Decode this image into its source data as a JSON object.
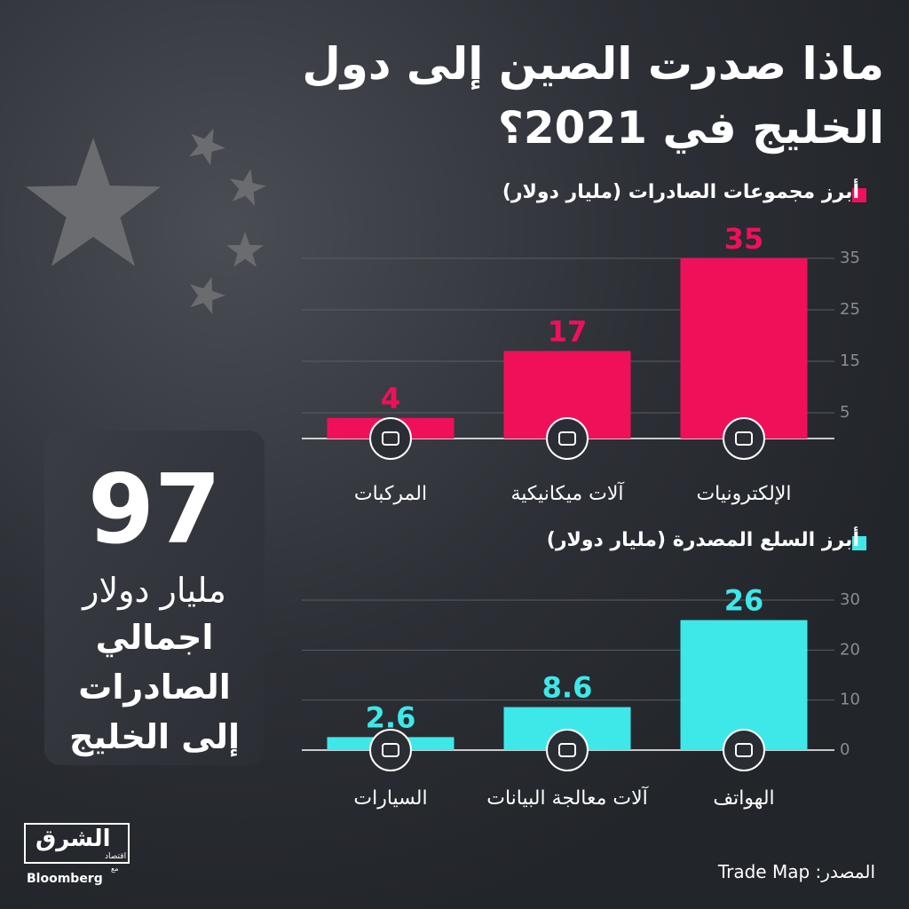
{
  "title": "ماذا صدرت الصين إلى دول الخليج في 2021؟",
  "chart_data": [
    {
      "type": "bar",
      "categories": [
        "الإلكترونيات",
        "آلات ميكانيكية",
        "المركبات"
      ],
      "series": [
        {
          "name": "أبرز مجموعات الصادرات (مليار دولار)",
          "color": "#f0105a",
          "values": [
            35,
            17,
            4
          ]
        }
      ],
      "ylim": [
        0,
        35
      ],
      "yticks": [
        5,
        15,
        25,
        35
      ],
      "grid": true
    },
    {
      "type": "bar",
      "categories": [
        "الهواتف",
        "آلات معالجة البيانات",
        "السيارات"
      ],
      "series": [
        {
          "name": "أبرز السلع المصدرة (مليار دولار)",
          "color": "#3ee8e8",
          "values": [
            26,
            8.6,
            2.6
          ]
        }
      ],
      "ylim": [
        0,
        30
      ],
      "yticks": [
        0,
        10,
        20,
        30
      ],
      "grid": true
    }
  ],
  "summary": {
    "value": 97,
    "unit": "مليار دولار",
    "label": "اجمالي الصادرات إلى الخليج"
  },
  "source": "المصدر: Trade Map",
  "logo": {
    "name": "الشرق",
    "sub": "اقتصاد",
    "with": "مع",
    "partner": "Bloomberg"
  }
}
